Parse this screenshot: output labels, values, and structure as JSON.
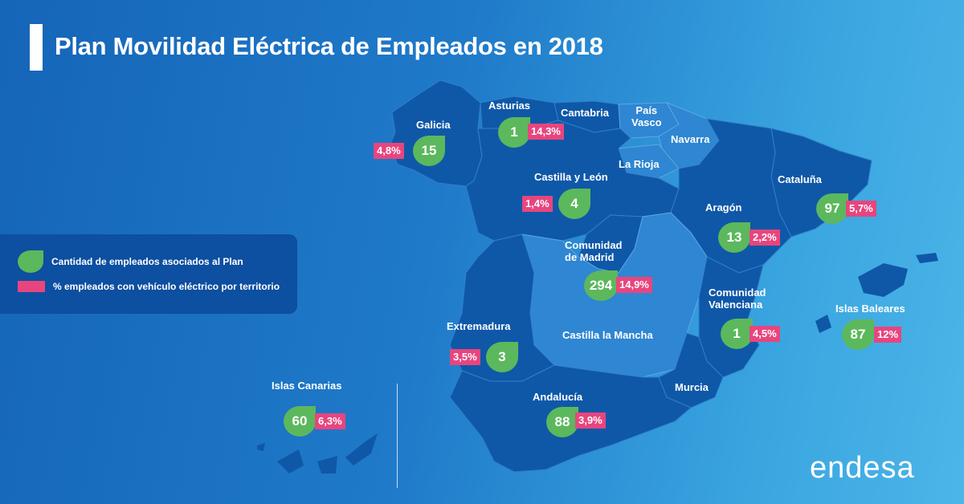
{
  "title": "Plan Movilidad Eléctrica de Empleados en 2018",
  "legend": {
    "employees": "Cantidad de empleados asociados al Plan",
    "percent": "% empleados con vehículo eléctrico por territorio"
  },
  "regions": {
    "galicia": {
      "name": "Galicia",
      "employees": "15",
      "percent": "4,8%"
    },
    "asturias": {
      "name": "Asturias",
      "employees": "1",
      "percent": "14,3%"
    },
    "cantabria": {
      "name": "Cantabria"
    },
    "pais_vasco": {
      "name": "País\nVasco"
    },
    "navarra": {
      "name": "Navarra"
    },
    "la_rioja": {
      "name": "La Rioja"
    },
    "castilla_leon": {
      "name": "Castilla y León",
      "employees": "4",
      "percent": "1,4%"
    },
    "cataluna": {
      "name": "Cataluña",
      "employees": "97",
      "percent": "5,7%"
    },
    "aragon": {
      "name": "Aragón",
      "employees": "13",
      "percent": "2,2%"
    },
    "madrid": {
      "name": "Comunidad\nde Madrid",
      "employees": "294",
      "percent": "14,9%"
    },
    "valenciana": {
      "name": "Comunidad\nValenciana",
      "employees": "1",
      "percent": "4,5%"
    },
    "baleares": {
      "name": "Islas Baleares",
      "employees": "87",
      "percent": "12%"
    },
    "extremadura": {
      "name": "Extremadura",
      "employees": "3",
      "percent": "3,5%"
    },
    "castilla_mancha": {
      "name": "Castilla la Mancha"
    },
    "murcia": {
      "name": "Murcia"
    },
    "andalucia": {
      "name": "Andalucía",
      "employees": "88",
      "percent": "3,9%"
    },
    "canarias": {
      "name": "Islas Canarias",
      "employees": "60",
      "percent": "6,3%"
    }
  },
  "logo": "endesa",
  "colors": {
    "drop": "#5cb85c",
    "percent_box": "#e8457e",
    "map_dark": "#0f58a8",
    "map_light": "#2f86d2"
  }
}
